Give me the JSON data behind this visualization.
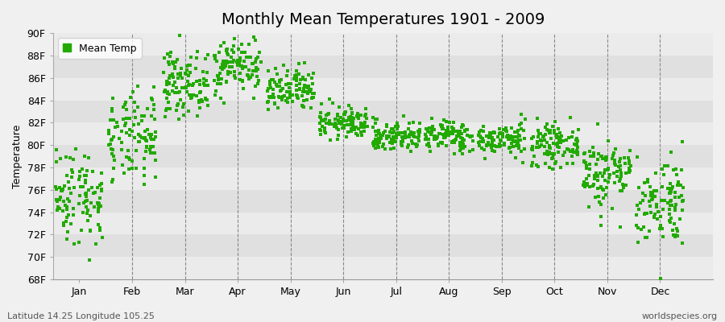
{
  "title": "Monthly Mean Temperatures 1901 - 2009",
  "ylabel": "Temperature",
  "bg_color": "#f0f0f0",
  "band_colors": [
    "#ebebeb",
    "#e0e0e0"
  ],
  "marker_color": "#22aa00",
  "marker": "s",
  "marker_size": 2.5,
  "ylim": [
    68,
    90
  ],
  "yticks": [
    68,
    70,
    72,
    74,
    76,
    78,
    80,
    82,
    84,
    86,
    88,
    90
  ],
  "ytick_labels": [
    "68F",
    "70F",
    "72F",
    "74F",
    "76F",
    "78F",
    "80F",
    "82F",
    "84F",
    "86F",
    "88F",
    "90F"
  ],
  "months": [
    "Jan",
    "Feb",
    "Mar",
    "Apr",
    "May",
    "Jun",
    "Jul",
    "Aug",
    "Sep",
    "Oct",
    "Nov",
    "Dec"
  ],
  "month_means": [
    75.5,
    80.5,
    85.5,
    87.2,
    84.8,
    82.0,
    80.8,
    80.8,
    80.5,
    80.0,
    77.5,
    75.0
  ],
  "month_stds": [
    2.2,
    2.0,
    1.4,
    1.3,
    1.0,
    0.7,
    0.7,
    0.7,
    0.7,
    0.9,
    1.6,
    2.0
  ],
  "n_years": 109,
  "random_seed": 42,
  "footnote_left": "Latitude 14.25 Longitude 105.25",
  "footnote_right": "worldspecies.org",
  "legend_label": "Mean Temp",
  "title_fontsize": 14,
  "axis_fontsize": 9,
  "footnote_fontsize": 8
}
